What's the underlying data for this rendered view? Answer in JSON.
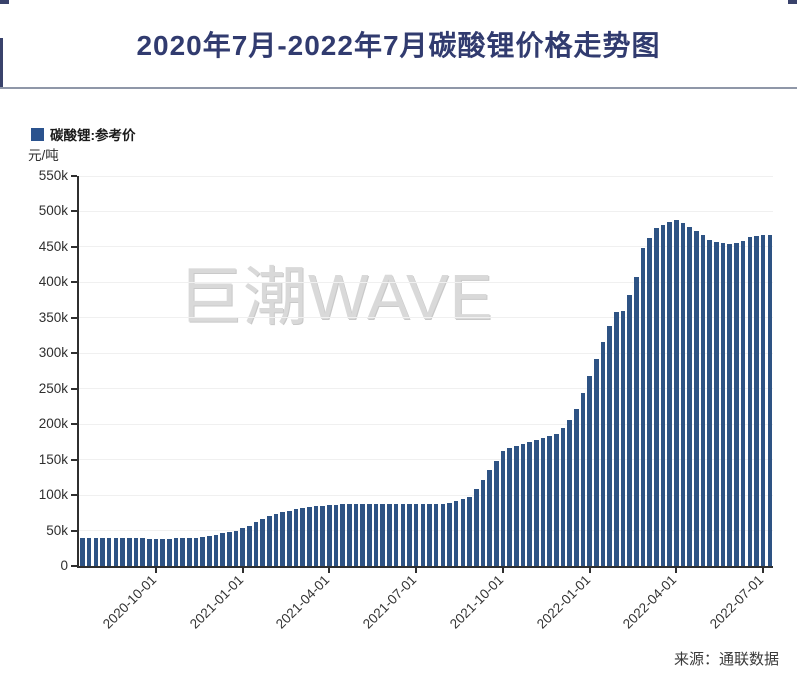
{
  "page": {
    "title": "2020年7月-2022年7月碳酸锂价格走势图",
    "watermark": "巨潮WAVE",
    "source": "来源：通联数据"
  },
  "colors": {
    "title_text": "#313b6f",
    "bar": "#2e5384",
    "legend_swatch": "#2b538e",
    "axis": "#2f2f2f",
    "gridline": "#f0f0f0",
    "watermark": "#d9d9d9",
    "divider": "#8f97a8"
  },
  "chart_data": {
    "type": "bar",
    "title": "2020年7月-2022年7月碳酸锂价格走势图",
    "legend": "碳酸锂:参考价",
    "ylabel": "元/吨",
    "frequency": "weekly",
    "grid": true,
    "legend_position": "top-left",
    "bar_color": "#2e5384",
    "ylim": [
      0,
      550000
    ],
    "ytick_values": [
      0,
      50000,
      100000,
      150000,
      200000,
      250000,
      300000,
      350000,
      400000,
      450000,
      500000,
      550000
    ],
    "ytick_labels": [
      "0",
      "50k",
      "100k",
      "150k",
      "200k",
      "250k",
      "300k",
      "350k",
      "400k",
      "450k",
      "500k",
      "550k"
    ],
    "xticks": [
      {
        "index": 11,
        "label": "2020-10-01"
      },
      {
        "index": 24,
        "label": "2021-01-01"
      },
      {
        "index": 37,
        "label": "2021-04-01"
      },
      {
        "index": 50,
        "label": "2021-07-01"
      },
      {
        "index": 63,
        "label": "2021-10-01"
      },
      {
        "index": 76,
        "label": "2022-01-01"
      },
      {
        "index": 89,
        "label": "2022-04-01"
      },
      {
        "index": 102,
        "label": "2022-07-01"
      }
    ],
    "x": [
      "2020-07-17",
      "2020-07-24",
      "2020-07-31",
      "2020-08-07",
      "2020-08-14",
      "2020-08-21",
      "2020-08-28",
      "2020-09-04",
      "2020-09-11",
      "2020-09-18",
      "2020-09-25",
      "2020-10-02",
      "2020-10-09",
      "2020-10-16",
      "2020-10-23",
      "2020-10-30",
      "2020-11-06",
      "2020-11-13",
      "2020-11-20",
      "2020-11-27",
      "2020-12-04",
      "2020-12-11",
      "2020-12-18",
      "2020-12-25",
      "2021-01-01",
      "2021-01-08",
      "2021-01-15",
      "2021-01-22",
      "2021-01-29",
      "2021-02-05",
      "2021-02-12",
      "2021-02-19",
      "2021-02-26",
      "2021-03-05",
      "2021-03-12",
      "2021-03-19",
      "2021-03-26",
      "2021-04-02",
      "2021-04-09",
      "2021-04-16",
      "2021-04-23",
      "2021-04-30",
      "2021-05-07",
      "2021-05-14",
      "2021-05-21",
      "2021-05-28",
      "2021-06-04",
      "2021-06-11",
      "2021-06-18",
      "2021-06-25",
      "2021-07-02",
      "2021-07-09",
      "2021-07-16",
      "2021-07-23",
      "2021-07-30",
      "2021-08-06",
      "2021-08-13",
      "2021-08-20",
      "2021-08-27",
      "2021-09-03",
      "2021-09-10",
      "2021-09-17",
      "2021-09-24",
      "2021-10-01",
      "2021-10-08",
      "2021-10-15",
      "2021-10-22",
      "2021-10-29",
      "2021-11-05",
      "2021-11-12",
      "2021-11-19",
      "2021-11-26",
      "2021-12-03",
      "2021-12-10",
      "2021-12-17",
      "2021-12-24",
      "2021-12-31",
      "2022-01-07",
      "2022-01-14",
      "2022-01-21",
      "2022-01-28",
      "2022-02-04",
      "2022-02-11",
      "2022-02-18",
      "2022-02-25",
      "2022-03-04",
      "2022-03-11",
      "2022-03-18",
      "2022-03-25",
      "2022-04-01",
      "2022-04-08",
      "2022-04-15",
      "2022-04-22",
      "2022-04-29",
      "2022-05-06",
      "2022-05-13",
      "2022-05-20",
      "2022-05-27",
      "2022-06-03",
      "2022-06-10",
      "2022-06-17",
      "2022-06-24",
      "2022-07-01",
      "2022-07-08"
    ],
    "values": [
      39000,
      39000,
      39500,
      39500,
      39500,
      39500,
      39500,
      39000,
      39000,
      39000,
      38500,
      38500,
      38500,
      38500,
      39000,
      39000,
      39500,
      40000,
      41000,
      42000,
      44000,
      46000,
      48000,
      50000,
      53000,
      57000,
      62000,
      67000,
      71000,
      74000,
      76000,
      78000,
      80000,
      82000,
      83000,
      84000,
      85000,
      86000,
      86000,
      87000,
      87000,
      87000,
      88000,
      88000,
      88000,
      88000,
      88000,
      87000,
      87000,
      87000,
      87000,
      87000,
      87000,
      88000,
      88000,
      89000,
      92000,
      95000,
      98000,
      108000,
      122000,
      135000,
      148000,
      162000,
      166000,
      169000,
      172000,
      175000,
      178000,
      181000,
      183000,
      186000,
      194000,
      206000,
      222000,
      244000,
      268000,
      292000,
      316000,
      338000,
      358000,
      360000,
      382000,
      408000,
      448000,
      463000,
      476000,
      481000,
      485000,
      488000,
      484000,
      478000,
      472000,
      467000,
      460000,
      457000,
      455000,
      454000,
      455000,
      459000,
      464000,
      466000,
      467000,
      467000
    ]
  }
}
